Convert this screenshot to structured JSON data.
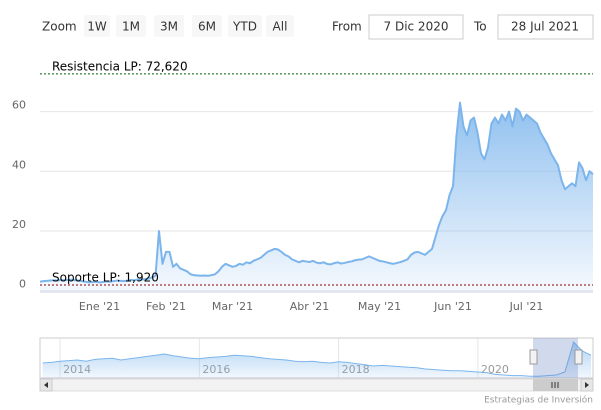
{
  "range_selector": {
    "zoom_label": "Zoom",
    "buttons": [
      "1W",
      "1M",
      "3M",
      "6M",
      "YTD",
      "All"
    ],
    "from_label": "From",
    "from": "7 Dic 2020",
    "to_label": "To",
    "to": "28 Jul 2021"
  },
  "chart_data": {
    "type": "area",
    "color": "#7cb5ec",
    "ylim": [
      0,
      80
    ],
    "yticks": [
      0,
      20,
      40,
      60
    ],
    "grid": true,
    "plot_lines": [
      {
        "value": 72.62,
        "label": "Resistencia LP: 72,620",
        "color": "#006400"
      },
      {
        "value": 1.92,
        "label": "Soporte LP: 1,920",
        "color": "#8b0000"
      }
    ],
    "categories": [
      null,
      null,
      null,
      null,
      null,
      null,
      null,
      null,
      null,
      null,
      null,
      null,
      null,
      null,
      null,
      null,
      null,
      "Ene '21",
      null,
      null,
      null,
      null,
      null,
      null,
      null,
      null,
      null,
      null,
      null,
      null,
      null,
      null,
      null,
      null,
      null,
      null,
      "Feb '21",
      null,
      null,
      null,
      null,
      null,
      null,
      null,
      null,
      null,
      null,
      null,
      null,
      null,
      null,
      null,
      null,
      null,
      null,
      "Mar '21",
      null,
      null,
      null,
      null,
      null,
      null,
      null,
      null,
      null,
      null,
      null,
      null,
      null,
      null,
      null,
      null,
      null,
      null,
      null,
      null,
      null,
      "Abr '21",
      null,
      null,
      null,
      null,
      null,
      null,
      null,
      null,
      null,
      null,
      null,
      null,
      null,
      null,
      null,
      null,
      null,
      null,
      null,
      "May '21",
      null,
      null,
      null,
      null,
      null,
      null,
      null,
      null,
      null,
      null,
      null,
      null,
      null,
      null,
      null,
      null,
      null,
      null,
      null,
      null,
      "Jun '21",
      null,
      null,
      null,
      null,
      null,
      null,
      null,
      null,
      null,
      null,
      null,
      null,
      null,
      null,
      null,
      null,
      null,
      null,
      null,
      null,
      "Jul '21",
      null,
      null,
      null,
      null,
      null,
      null,
      null,
      null,
      null,
      null,
      null,
      null,
      null,
      null,
      null,
      null,
      null,
      null,
      null
    ],
    "values": [
      3,
      3.2,
      3.3,
      3.4,
      3.5,
      3.4,
      3.6,
      3.5,
      3.6,
      3.7,
      3.5,
      3.4,
      3.2,
      3.0,
      2.8,
      2.9,
      3.0,
      2.8,
      2.9,
      3.1,
      3.0,
      3.2,
      3.4,
      3.3,
      3.2,
      3.4,
      3.6,
      3.5,
      3.8,
      3.7,
      3.9,
      4.0,
      4.5,
      5.0,
      20,
      9,
      13,
      13,
      8,
      9,
      7.5,
      7,
      6.5,
      5.5,
      5.2,
      5.1,
      5.0,
      5.1,
      5.0,
      5.2,
      5.5,
      6.5,
      8,
      9,
      8.5,
      8,
      8.3,
      9,
      8.7,
      9.5,
      9.2,
      10,
      10.5,
      11,
      12,
      13,
      13.5,
      14,
      13.8,
      13,
      12,
      11.5,
      10.5,
      10,
      9.5,
      10,
      9.8,
      9.6,
      10,
      9.4,
      9.2,
      9.5,
      9,
      8.8,
      9.2,
      9.5,
      9.1,
      9.3,
      9.6,
      9.8,
      10.2,
      10.4,
      10.5,
      11,
      11.5,
      11,
      10.5,
      10,
      9.8,
      9.5,
      9.2,
      9.0,
      9.3,
      9.6,
      10,
      10.5,
      12,
      12.8,
      13,
      12.5,
      12,
      13,
      14,
      18,
      22,
      25,
      27,
      32,
      35,
      52,
      63,
      55,
      52,
      57,
      58,
      53,
      46,
      44,
      48,
      56,
      58,
      56,
      59,
      57,
      60,
      55,
      61,
      60,
      57,
      59,
      58,
      57,
      56,
      53,
      51,
      49,
      46,
      44,
      42,
      37,
      34,
      35,
      36,
      35,
      43,
      41,
      37,
      40,
      39
    ]
  },
  "navigator": {
    "type": "area",
    "color": "#7cb5ec",
    "categories": [
      null,
      null,
      "2014",
      null,
      null,
      null,
      null,
      null,
      null,
      null,
      null,
      null,
      null,
      null,
      null,
      null,
      null,
      null,
      "2016",
      null,
      null,
      null,
      null,
      null,
      null,
      null,
      null,
      null,
      null,
      null,
      null,
      null,
      null,
      null,
      "2018",
      null,
      null,
      null,
      null,
      null,
      null,
      null,
      null,
      null,
      null,
      null,
      null,
      null,
      null,
      null,
      "2020",
      null,
      null,
      null,
      null,
      null,
      null,
      null,
      null,
      null,
      null,
      null,
      null,
      null
    ],
    "values": [
      25,
      26,
      28,
      29,
      30,
      28,
      31,
      32,
      33,
      30,
      32,
      34,
      36,
      38,
      40,
      37,
      35,
      33,
      32,
      34,
      35,
      36,
      38,
      37,
      36,
      34,
      32,
      31,
      30,
      28,
      27,
      28,
      26,
      25,
      27,
      26,
      24,
      22,
      20,
      21,
      20,
      19,
      18,
      17,
      15,
      14,
      13,
      12,
      12,
      11,
      10,
      9,
      6,
      5,
      4,
      4,
      3,
      3,
      4,
      5,
      10,
      60,
      45,
      38
    ]
  },
  "credits": "Estrategias de Inversión"
}
